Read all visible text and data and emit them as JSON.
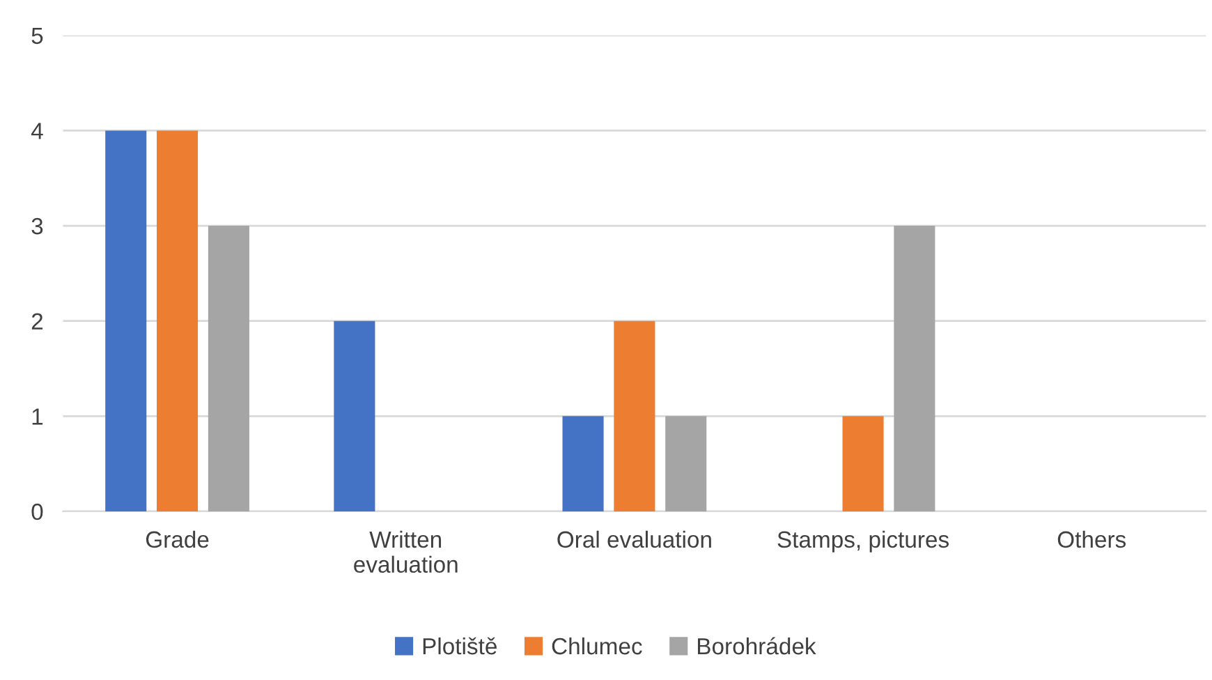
{
  "chart_data": {
    "type": "bar",
    "categories": [
      "Grade",
      "Written\nevaluation",
      "Oral evaluation",
      "Stamps, pictures",
      "Others"
    ],
    "series": [
      {
        "name": "Plotiště",
        "color": "#4472c4",
        "values": [
          4,
          2,
          1,
          0,
          0
        ]
      },
      {
        "name": "Chlumec",
        "color": "#ed7d31",
        "values": [
          4,
          0,
          2,
          1,
          0
        ]
      },
      {
        "name": "Borohrádek",
        "color": "#a5a5a5",
        "values": [
          3,
          0,
          1,
          3,
          0
        ]
      }
    ],
    "ylim": [
      0,
      5
    ],
    "yticks": [
      0,
      1,
      2,
      3,
      4,
      5
    ],
    "grid": "y",
    "legend": "bottom"
  }
}
